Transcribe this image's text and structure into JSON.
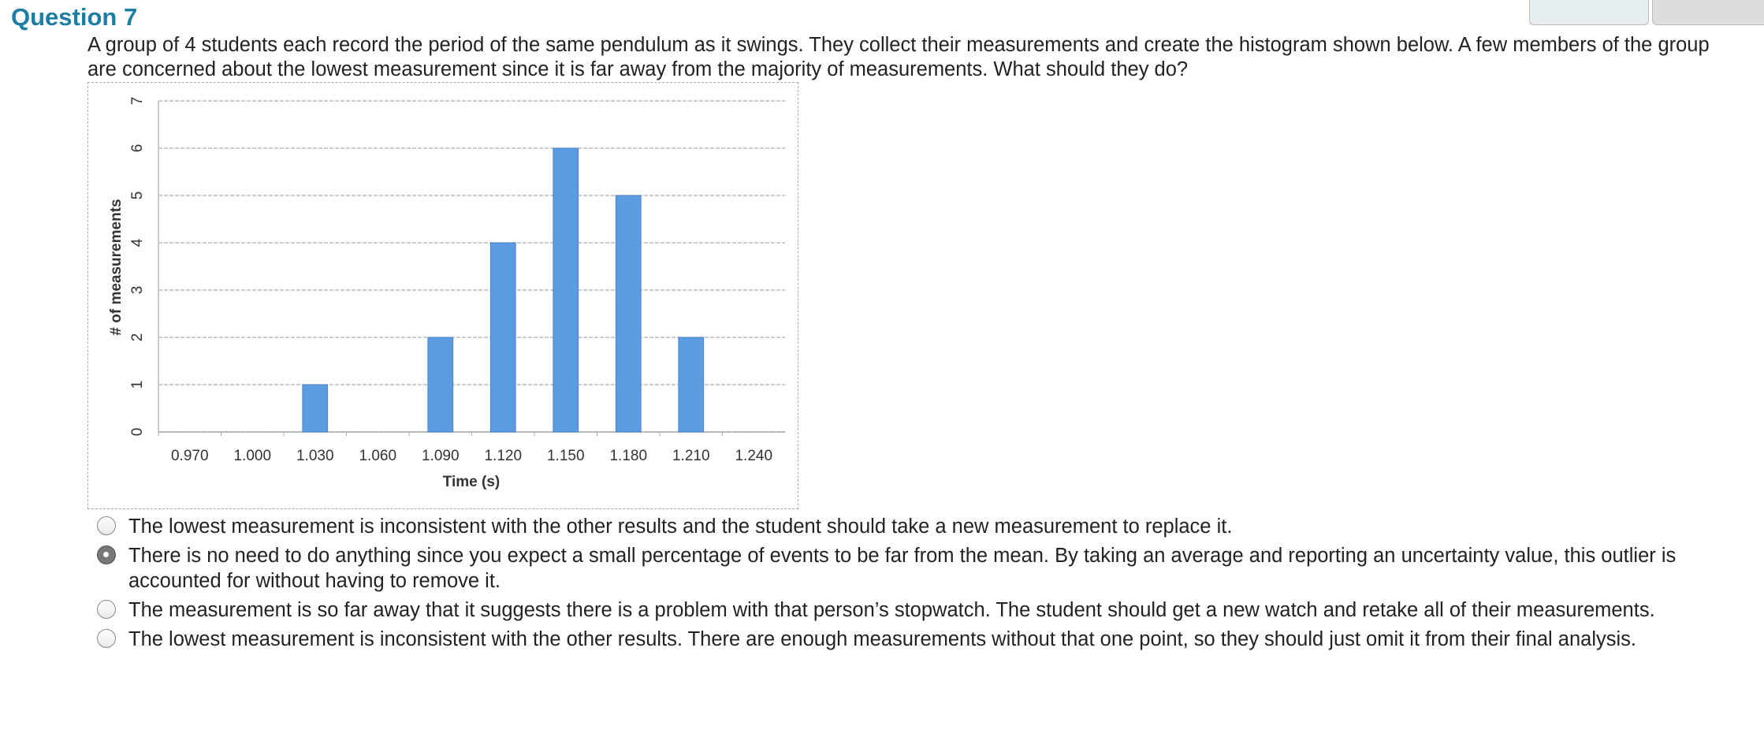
{
  "question": {
    "title": "Question 7",
    "text": "A group of 4 students each record the period of the same pendulum as it swings.  They collect their measurements and create the histogram shown below. A few members of the group are concerned about the lowest measurement since it is far away from the majority of measurements. What should they do?",
    "options": [
      "The lowest measurement is inconsistent with the other results and the student should take a new measurement to replace it.",
      "There is no need to do anything since you expect a small percentage of events to be far from the mean. By taking an average and reporting an uncertainty value, this outlier is accounted for without having to remove it.",
      "The measurement is so far away that it suggests there is a problem with that person’s stopwatch.  The student should get a new watch and retake all of their measurements.",
      "The lowest measurement is inconsistent with the other results. There are enough measurements without that one point, so they should just omit it from their final analysis."
    ],
    "selected": 1
  },
  "chart_data": {
    "type": "bar",
    "categories": [
      "0.970",
      "1.000",
      "1.030",
      "1.060",
      "1.090",
      "1.120",
      "1.150",
      "1.180",
      "1.210",
      "1.240"
    ],
    "values": [
      0,
      0,
      1,
      0,
      2,
      4,
      6,
      5,
      2,
      0
    ],
    "color": "#5b9be0",
    "xlabel": "Time (s)",
    "ylabel": "# of measurements",
    "ylim": [
      0,
      7
    ],
    "yticks": [
      0,
      1,
      2,
      3,
      4,
      5,
      6,
      7
    ],
    "grid": true
  }
}
